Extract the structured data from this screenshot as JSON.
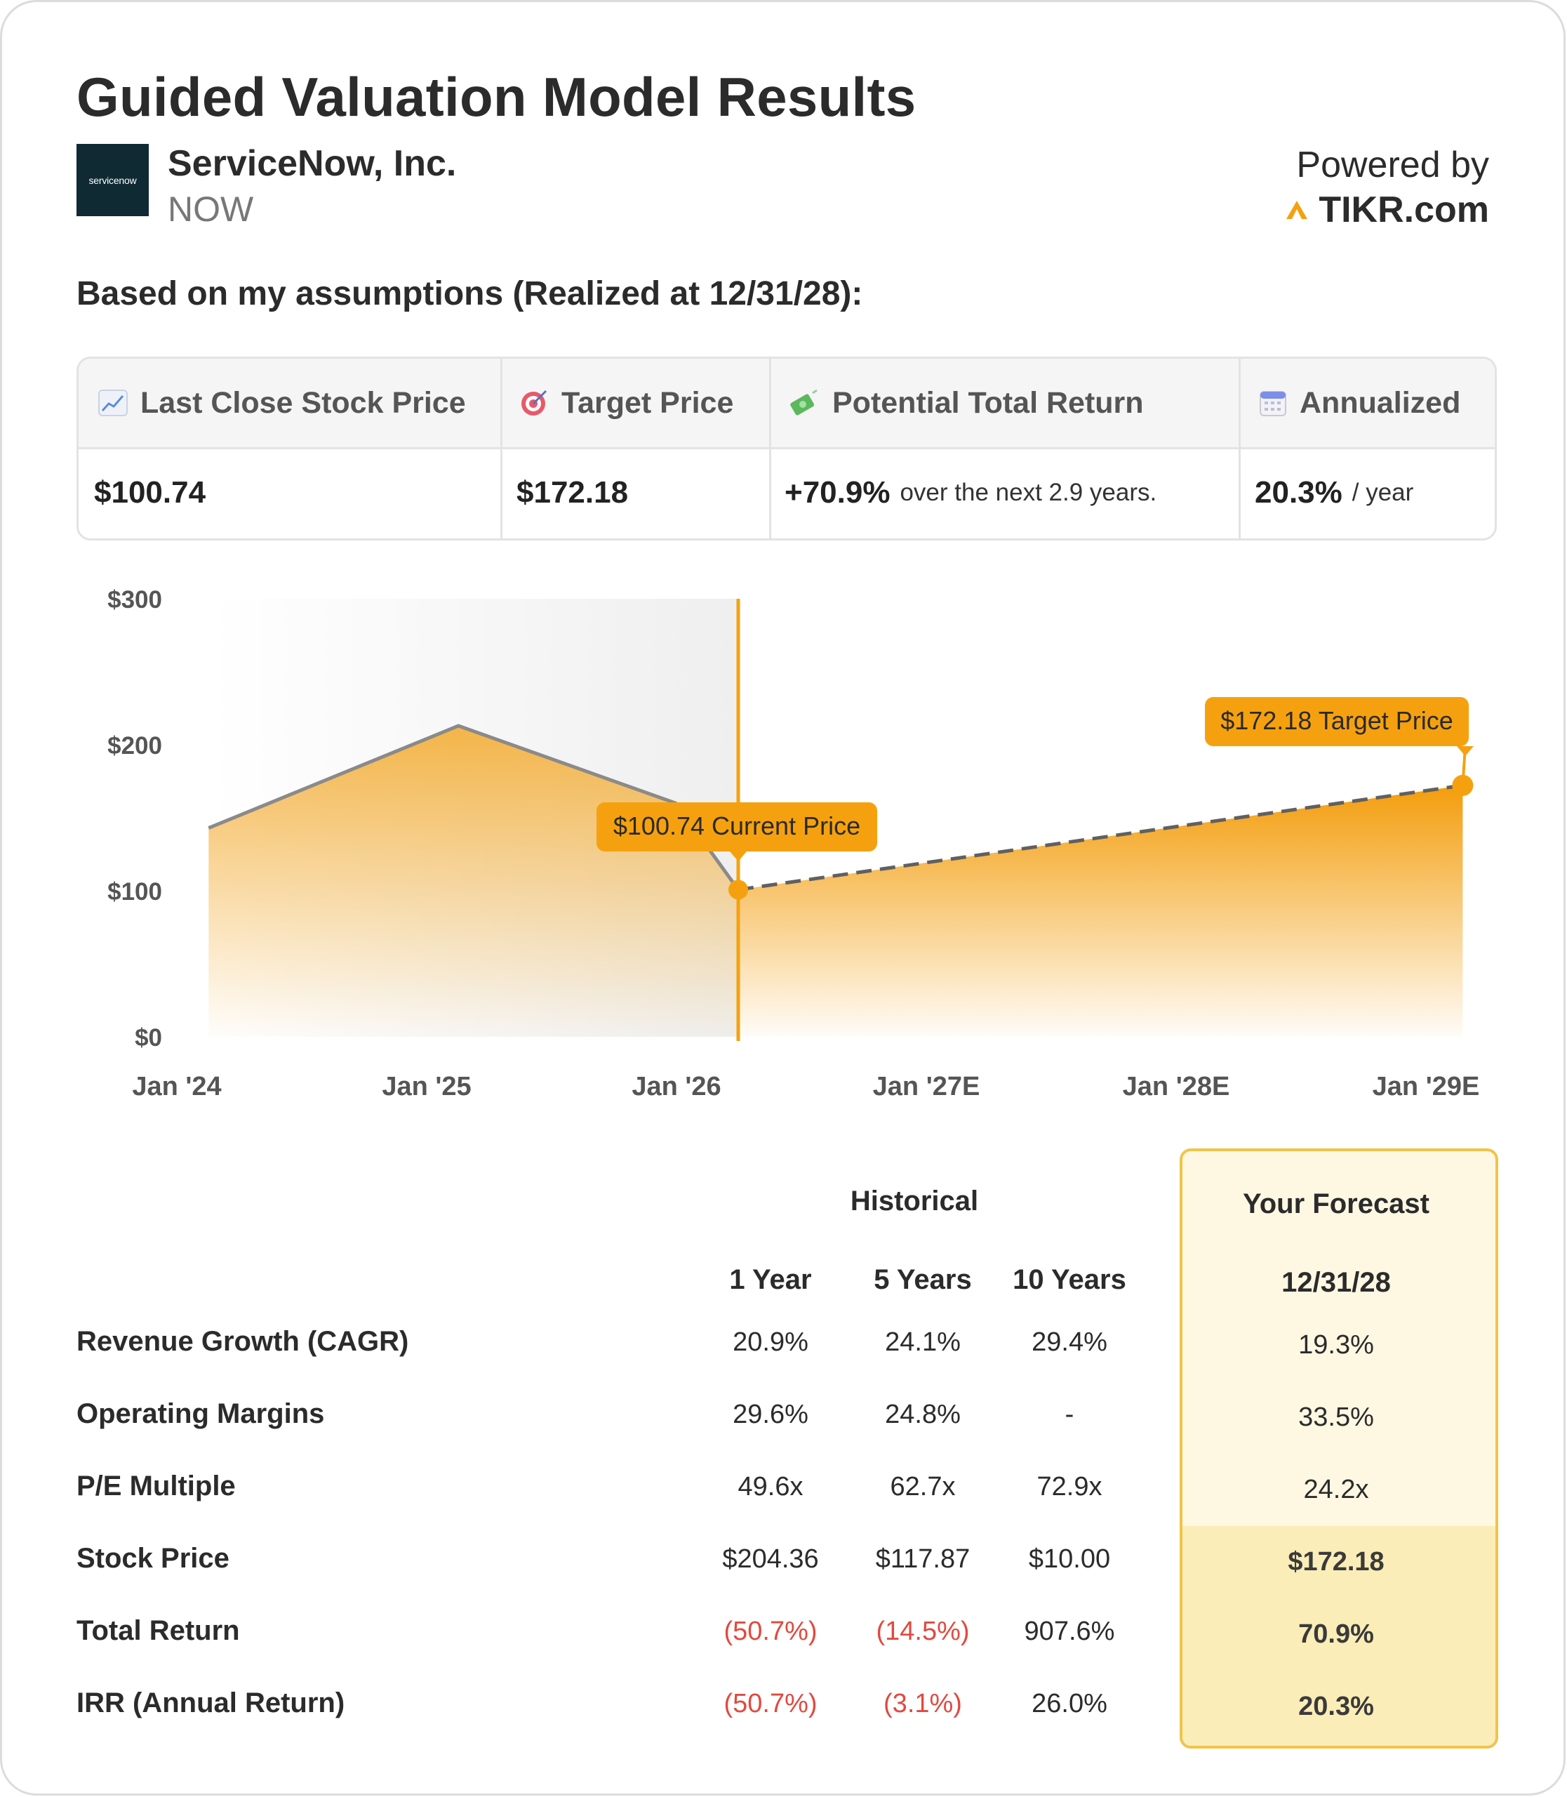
{
  "header": {
    "title": "Guided Valuation Model Results",
    "logo_text": "servicenow",
    "company_name": "ServiceNow, Inc.",
    "ticker": "NOW",
    "powered_by": "Powered by",
    "brand": "TIKR.com",
    "assumption_line": "Based on my assumptions (Realized at 12/31/28):"
  },
  "stats": [
    {
      "label": "Last Close Stock Price",
      "icon": "chart-up-icon",
      "value": "$100.74",
      "suffix": ""
    },
    {
      "label": "Target Price",
      "icon": "target-icon",
      "value": "$172.18",
      "suffix": ""
    },
    {
      "label": "Potential Total Return",
      "icon": "money-icon",
      "value": "+70.9%",
      "suffix": "over the next 2.9 years."
    },
    {
      "label": "Annualized",
      "icon": "calendar-icon",
      "value": "20.3%",
      "suffix": "/ year"
    }
  ],
  "chart_data": {
    "type": "area",
    "y_ticks": [
      "$300",
      "$200",
      "$100",
      "$0"
    ],
    "ylim": [
      0,
      300
    ],
    "x_ticks": [
      "Jan '24",
      "Jan '25",
      "Jan '26",
      "Jan '27E",
      "Jan '28E",
      "Jan '29E"
    ],
    "historical": [
      {
        "t": 0.13,
        "price": 143
      },
      {
        "t": 1.13,
        "price": 213
      },
      {
        "t": 2.0,
        "price": 160
      },
      {
        "t": 2.25,
        "price": 100.74
      }
    ],
    "forecast": [
      {
        "t": 2.25,
        "price": 100.74
      },
      {
        "t": 5.15,
        "price": 172.18
      }
    ],
    "current_label": "$100.74 Current Price",
    "target_label": "$172.18 Target Price",
    "accent_color": "#f5a10f"
  },
  "table": {
    "historical_header": "Historical",
    "forecast_header": "Your Forecast",
    "columns": [
      "1 Year",
      "5 Years",
      "10 Years"
    ],
    "forecast_date": "12/31/28",
    "rows": [
      {
        "label": "Revenue Growth (CAGR)",
        "values": [
          "20.9%",
          "24.1%",
          "29.4%"
        ],
        "forecast": "19.3%"
      },
      {
        "label": "Operating Margins",
        "values": [
          "29.6%",
          "24.8%",
          "-"
        ],
        "forecast": "33.5%"
      },
      {
        "label": "P/E Multiple",
        "values": [
          "49.6x",
          "62.7x",
          "72.9x"
        ],
        "forecast": "24.2x"
      },
      {
        "label": "Stock Price",
        "values": [
          "$204.36",
          "$117.87",
          "$10.00"
        ],
        "forecast": "$172.18"
      },
      {
        "label": "Total Return",
        "values": [
          "(50.7%)",
          "(14.5%)",
          "907.6%"
        ],
        "forecast": "70.9%"
      },
      {
        "label": "IRR (Annual Return)",
        "values": [
          "(50.7%)",
          "(3.1%)",
          "26.0%"
        ],
        "forecast": "20.3%"
      }
    ]
  }
}
